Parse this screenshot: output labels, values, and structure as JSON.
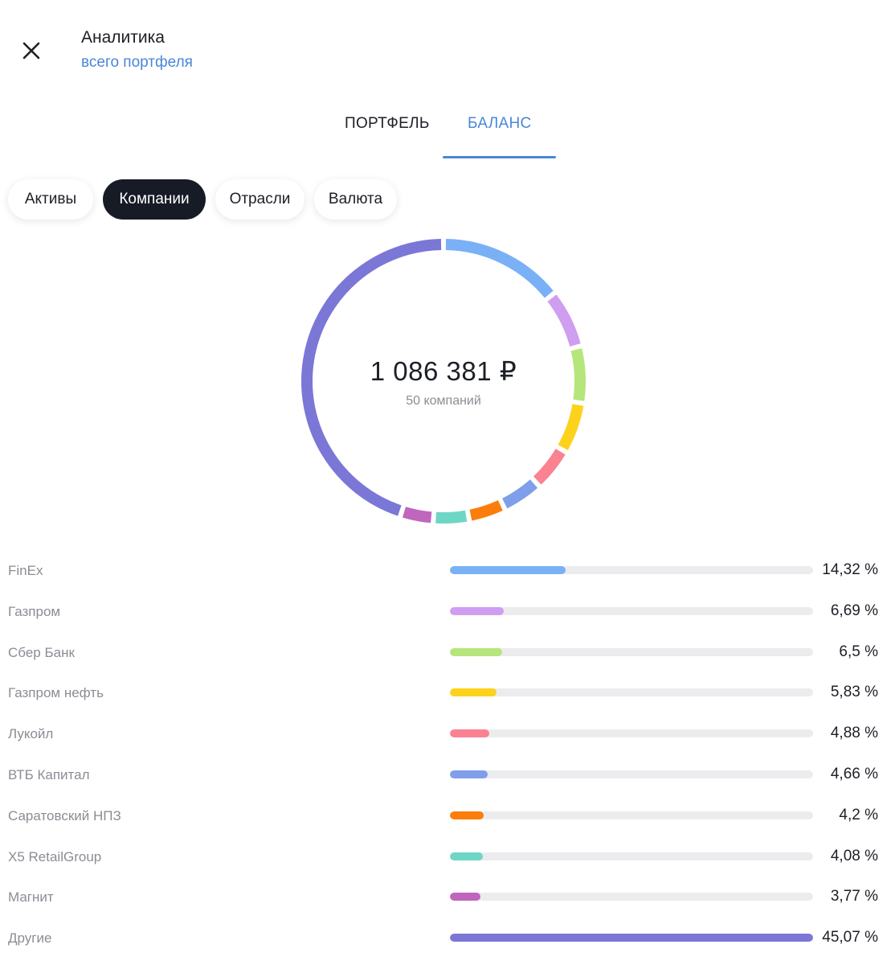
{
  "header": {
    "title": "Аналитика",
    "subtitle": "всего портфеля"
  },
  "tabs": {
    "portfolio": "ПОРТФЕЛЬ",
    "balance": "БАЛАНС",
    "active": "balance"
  },
  "chips": {
    "assets": "Активы",
    "companies": "Компании",
    "industries": "Отрасли",
    "currency": "Валюта",
    "active": "companies"
  },
  "summary": {
    "total": "1 086 381 ₽",
    "count": "50 компаний"
  },
  "icons": {
    "close": "close-icon"
  },
  "colors": {
    "accent": "#4a87d6",
    "chip_active_bg": "#161b26",
    "track": "#ececef"
  },
  "allocation": [
    {
      "name": "FinEx",
      "percent_label": "14,32 %",
      "value": 14.32,
      "color": "#7ab0f5"
    },
    {
      "name": "Газпром",
      "percent_label": "6,69 %",
      "value": 6.69,
      "color": "#cf9ef0"
    },
    {
      "name": "Сбер Банк",
      "percent_label": "6,5 %",
      "value": 6.5,
      "color": "#b6e57c"
    },
    {
      "name": "Газпром нефть",
      "percent_label": "5,83 %",
      "value": 5.83,
      "color": "#fcd21c"
    },
    {
      "name": "Лукойл",
      "percent_label": "4,88 %",
      "value": 4.88,
      "color": "#fb8291"
    },
    {
      "name": "ВТБ Капитал",
      "percent_label": "4,66 %",
      "value": 4.66,
      "color": "#7f9fea"
    },
    {
      "name": "Саратовский НПЗ",
      "percent_label": "4,2 %",
      "value": 4.2,
      "color": "#fb7d0b"
    },
    {
      "name": "X5 RetailGroup",
      "percent_label": "4,08 %",
      "value": 4.08,
      "color": "#6ed6c4"
    },
    {
      "name": "Магнит",
      "percent_label": "3,77 %",
      "value": 3.77,
      "color": "#c066bd"
    },
    {
      "name": "Другие",
      "percent_label": "45,07 %",
      "value": 45.07,
      "color": "#7b77d6"
    }
  ]
}
